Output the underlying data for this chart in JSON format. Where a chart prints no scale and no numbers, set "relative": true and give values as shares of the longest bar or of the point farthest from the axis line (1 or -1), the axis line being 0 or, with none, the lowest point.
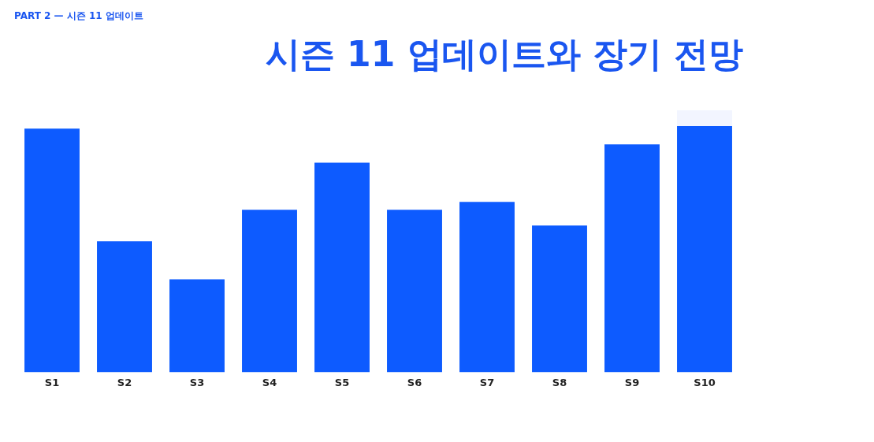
{
  "chart_data": {
    "type": "bar",
    "title": "시즌 11 업데이트와 장기 전망",
    "annotations": [
      "PART 2 — 시즌 11 업데이트"
    ],
    "categories": [
      "S1",
      "S2",
      "S3",
      "S4",
      "S5",
      "S6",
      "S7",
      "S8",
      "S9",
      "S10"
    ],
    "relative": true,
    "stacked": true,
    "grid": false,
    "legend": false,
    "series": [
      {
        "color": "#0d5bff",
        "values": [
          0.93,
          0.5,
          0.355,
          0.62,
          0.8,
          0.62,
          0.65,
          0.56,
          0.87,
          0.94
        ]
      },
      {
        "color": "#f2f5ff",
        "values": [
          null,
          null,
          null,
          null,
          null,
          null,
          null,
          null,
          null,
          0.06
        ]
      }
    ]
  }
}
